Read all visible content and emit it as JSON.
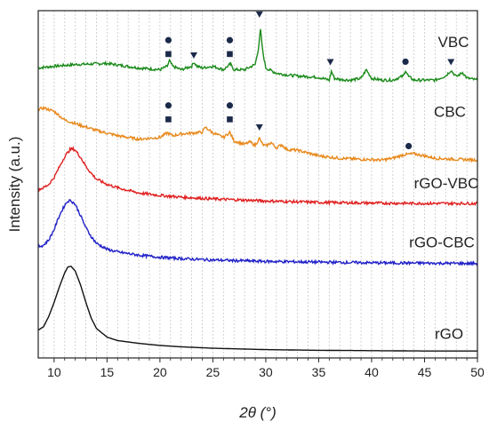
{
  "chart_data": {
    "type": "line",
    "xlabel": "2θ (°)",
    "ylabel": "Intensity (a.u.)",
    "xlim": [
      8.5,
      50
    ],
    "xticks": [
      10,
      15,
      20,
      25,
      30,
      35,
      40,
      45,
      50
    ],
    "grid": "vertical dotted",
    "legend": "inline labels at right",
    "series": [
      {
        "name": "VBC",
        "color": "#1a8a1a",
        "x": [
          8.5,
          10,
          12,
          15,
          18,
          20,
          20.7,
          20.9,
          21.2,
          22,
          23,
          23.2,
          23.5,
          24,
          25,
          25.5,
          26,
          26.6,
          26.7,
          27,
          28,
          29,
          29.3,
          29.5,
          29.7,
          30,
          31,
          32,
          33,
          34,
          35,
          36,
          36.2,
          36.5,
          37,
          38,
          39,
          39.5,
          40,
          41,
          42,
          43,
          43.2,
          43.5,
          44,
          45,
          46,
          47,
          47.5,
          48,
          48.6,
          49,
          50
        ],
        "y": [
          0.835,
          0.84,
          0.845,
          0.848,
          0.835,
          0.83,
          0.84,
          0.856,
          0.84,
          0.83,
          0.84,
          0.852,
          0.84,
          0.835,
          0.84,
          0.835,
          0.83,
          0.845,
          0.845,
          0.83,
          0.83,
          0.845,
          0.89,
          0.945,
          0.885,
          0.835,
          0.82,
          0.815,
          0.812,
          0.81,
          0.808,
          0.8,
          0.825,
          0.805,
          0.802,
          0.8,
          0.805,
          0.83,
          0.805,
          0.8,
          0.8,
          0.812,
          0.828,
          0.81,
          0.8,
          0.8,
          0.8,
          0.812,
          0.828,
          0.81,
          0.822,
          0.806,
          0.8
        ]
      },
      {
        "name": "CBC",
        "color": "#e8891c",
        "x": [
          8.5,
          9,
          10,
          11,
          12,
          14,
          16,
          18,
          20,
          20.7,
          21.2,
          22,
          24,
          24.3,
          25,
          26,
          26.6,
          27,
          28,
          28.5,
          29,
          29.4,
          29.7,
          30,
          30.5,
          31,
          31.5,
          32,
          33,
          34,
          35,
          37,
          39,
          41,
          42,
          43,
          44,
          45,
          46,
          48,
          50
        ],
        "y": [
          0.715,
          0.72,
          0.71,
          0.685,
          0.675,
          0.655,
          0.64,
          0.63,
          0.635,
          0.648,
          0.64,
          0.645,
          0.65,
          0.664,
          0.648,
          0.635,
          0.65,
          0.625,
          0.615,
          0.622,
          0.612,
          0.632,
          0.615,
          0.61,
          0.62,
          0.605,
          0.614,
          0.6,
          0.598,
          0.59,
          0.582,
          0.575,
          0.572,
          0.57,
          0.575,
          0.585,
          0.588,
          0.582,
          0.575,
          0.572,
          0.57
        ]
      },
      {
        "name": "rGO-VBC",
        "color": "#e02020",
        "x": [
          8.5,
          9,
          9.5,
          10,
          10.5,
          11,
          11.5,
          11.8,
          12,
          12.5,
          13,
          13.5,
          14,
          15,
          16,
          18,
          20,
          22,
          25,
          30,
          35,
          40,
          45,
          50
        ],
        "y": [
          0.485,
          0.49,
          0.5,
          0.52,
          0.55,
          0.58,
          0.6,
          0.602,
          0.598,
          0.578,
          0.552,
          0.532,
          0.515,
          0.5,
          0.49,
          0.475,
          0.468,
          0.463,
          0.458,
          0.452,
          0.448,
          0.446,
          0.445,
          0.445
        ]
      },
      {
        "name": "rGO-CBC",
        "color": "#2020c8",
        "x": [
          8.5,
          9,
          9.5,
          10,
          10.5,
          11,
          11.3,
          11.6,
          12,
          12.5,
          13,
          13.5,
          14,
          15,
          16,
          18,
          20,
          22,
          25,
          30,
          35,
          40,
          45,
          50
        ],
        "y": [
          0.32,
          0.325,
          0.34,
          0.37,
          0.41,
          0.44,
          0.452,
          0.453,
          0.442,
          0.41,
          0.375,
          0.35,
          0.33,
          0.313,
          0.305,
          0.296,
          0.29,
          0.286,
          0.282,
          0.278,
          0.276,
          0.274,
          0.273,
          0.272
        ]
      },
      {
        "name": "rGO",
        "color": "#111111",
        "x": [
          8.5,
          9,
          9.5,
          10,
          10.5,
          11,
          11.3,
          11.6,
          12,
          12.5,
          13,
          13.5,
          14,
          15,
          16,
          18,
          20,
          22,
          25,
          30,
          35,
          40,
          45,
          50
        ],
        "y": [
          0.08,
          0.09,
          0.12,
          0.16,
          0.205,
          0.245,
          0.262,
          0.264,
          0.25,
          0.21,
          0.16,
          0.115,
          0.085,
          0.06,
          0.05,
          0.042,
          0.036,
          0.032,
          0.028,
          0.024,
          0.022,
          0.021,
          0.02,
          0.02
        ]
      }
    ],
    "markers": [
      {
        "series": "VBC",
        "shape": "circle",
        "x": 20.8,
        "y": 0.915
      },
      {
        "series": "VBC",
        "shape": "square",
        "x": 20.8,
        "y": 0.875
      },
      {
        "series": "VBC",
        "shape": "triangle",
        "x": 23.2,
        "y": 0.872
      },
      {
        "series": "VBC",
        "shape": "circle",
        "x": 26.6,
        "y": 0.915
      },
      {
        "series": "VBC",
        "shape": "square",
        "x": 26.6,
        "y": 0.875
      },
      {
        "series": "VBC",
        "shape": "triangle",
        "x": 29.4,
        "y": 0.99
      },
      {
        "series": "VBC",
        "shape": "triangle",
        "x": 36.1,
        "y": 0.853
      },
      {
        "series": "VBC",
        "shape": "circle",
        "x": 43.2,
        "y": 0.853
      },
      {
        "series": "VBC",
        "shape": "triangle",
        "x": 47.5,
        "y": 0.853
      },
      {
        "series": "CBC",
        "shape": "circle",
        "x": 20.8,
        "y": 0.727
      },
      {
        "series": "CBC",
        "shape": "square",
        "x": 20.8,
        "y": 0.687
      },
      {
        "series": "CBC",
        "shape": "circle",
        "x": 26.6,
        "y": 0.727
      },
      {
        "series": "CBC",
        "shape": "square",
        "x": 26.6,
        "y": 0.687
      },
      {
        "series": "CBC",
        "shape": "triangle",
        "x": 29.4,
        "y": 0.665
      },
      {
        "series": "CBC",
        "shape": "circle",
        "x": 43.5,
        "y": 0.61
      }
    ],
    "marker_color": "#1c2a4a"
  }
}
